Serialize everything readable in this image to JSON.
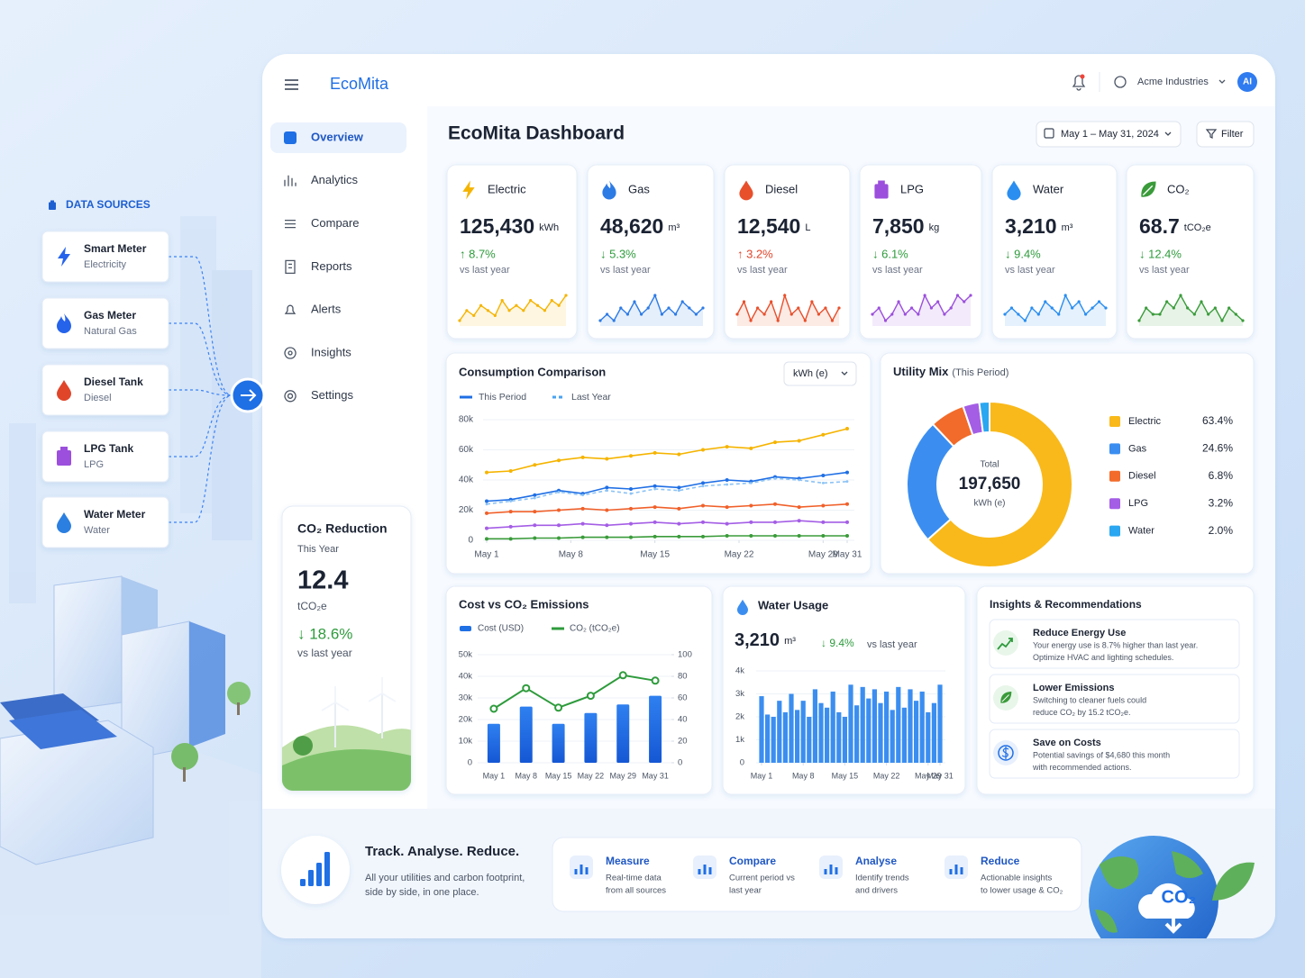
{
  "sources": {
    "title": "DATA SOURCES",
    "items": [
      {
        "name": "Smart Meter",
        "type": "Electricity"
      },
      {
        "name": "Gas Meter",
        "type": "Natural Gas"
      },
      {
        "name": "Diesel Tank",
        "type": "Diesel"
      },
      {
        "name": "LPG Tank",
        "type": "LPG"
      },
      {
        "name": "Water Meter",
        "type": "Water"
      }
    ]
  },
  "header": {
    "brand": "EcoMita",
    "company": "Acme Industries",
    "avatar": "AI"
  },
  "nav": {
    "items": [
      "Overview",
      "Analytics",
      "Compare",
      "Reports",
      "Alerts",
      "Insights",
      "Settings"
    ],
    "active": 0
  },
  "co2_card": {
    "title": "CO₂ Reduction",
    "subtitle": "This Year",
    "value": "12.4",
    "unit": "tCO₂e",
    "change": "↓ 18.6%",
    "change_color": "#2e9b3c",
    "note": "vs last year"
  },
  "dashboard": {
    "title": "EcoMita Dashboard",
    "date_range": "May 1 – May 31, 2024",
    "filter": "Filter"
  },
  "kpis": [
    {
      "name": "Electric",
      "value": "125,430",
      "unit": "kWh",
      "change": "↑ 8.7%",
      "change_color": "#2e9b3c",
      "note": "vs last year",
      "color": "#f5b400",
      "spark": [
        3,
        5,
        4,
        6,
        5,
        4,
        7,
        5,
        6,
        5,
        7,
        6,
        5,
        7,
        6,
        8
      ]
    },
    {
      "name": "Gas",
      "value": "48,620",
      "unit": "m³",
      "change": "↓ 5.3%",
      "change_color": "#2e9b3c",
      "note": "vs last year",
      "color": "#2d7be5",
      "spark": [
        4,
        5,
        4,
        6,
        5,
        7,
        5,
        6,
        8,
        5,
        6,
        5,
        7,
        6,
        5,
        6
      ]
    },
    {
      "name": "Diesel",
      "value": "12,540",
      "unit": "L",
      "change": "↑ 3.2%",
      "change_color": "#e0452a",
      "note": "vs last year",
      "color": "#e8502c",
      "spark": [
        5,
        7,
        4,
        6,
        5,
        7,
        4,
        8,
        5,
        6,
        4,
        7,
        5,
        6,
        4,
        6
      ]
    },
    {
      "name": "LPG",
      "value": "7,850",
      "unit": "kg",
      "change": "↓ 6.1%",
      "change_color": "#2e9b3c",
      "note": "vs last year",
      "color": "#9b4fdc",
      "spark": [
        4,
        5,
        3,
        4,
        6,
        4,
        5,
        4,
        7,
        5,
        6,
        4,
        5,
        7,
        6,
        7
      ]
    },
    {
      "name": "Water",
      "value": "3,210",
      "unit": "m³",
      "change": "↓ 9.4%",
      "change_color": "#2e9b3c",
      "note": "vs last year",
      "color": "#2a8ef0",
      "spark": [
        5,
        6,
        5,
        4,
        6,
        5,
        7,
        6,
        5,
        8,
        6,
        7,
        5,
        6,
        7,
        6
      ]
    },
    {
      "name": "CO₂",
      "value": "68.7",
      "unit": "tCO₂e",
      "change": "↓ 12.4%",
      "change_color": "#2e9b3c",
      "note": "vs last year",
      "color": "#3a9b3a",
      "spark": [
        4,
        6,
        5,
        5,
        7,
        6,
        8,
        6,
        5,
        7,
        5,
        6,
        4,
        6,
        5,
        4
      ]
    }
  ],
  "charts": {
    "consumption": {
      "type": "line",
      "title": "Consumption Comparison",
      "unit_selector": "kWh (e)",
      "legend": [
        {
          "label": "This Period",
          "color": "#1f6fe5",
          "dash": false
        },
        {
          "label": "Last Year",
          "color": "#4aa3f0",
          "dash": true
        }
      ],
      "x": [
        1,
        3,
        5,
        7,
        9,
        11,
        13,
        15,
        17,
        19,
        21,
        23,
        25,
        27,
        29,
        31
      ],
      "xlim": [
        1,
        31
      ],
      "xticks": [
        {
          "value": 1,
          "label": "May 1"
        },
        {
          "value": 8,
          "label": "May 8"
        },
        {
          "value": 15,
          "label": "May 15"
        },
        {
          "value": 22,
          "label": "May 22"
        },
        {
          "value": 29,
          "label": "May 29"
        },
        {
          "value": 31,
          "label": "May 31"
        }
      ],
      "ylim": [
        0,
        80000
      ],
      "yticks": [
        0,
        {
          "value": 20000,
          "label": "20k"
        },
        {
          "value": 40000,
          "label": "40k"
        },
        {
          "value": 60000,
          "label": "60k"
        },
        {
          "value": 80000,
          "label": "80k"
        }
      ],
      "series": [
        {
          "color": "#f5b400",
          "dash": false,
          "values": [
            45000,
            46000,
            50000,
            53000,
            55000,
            54000,
            56000,
            58000,
            57000,
            60000,
            62000,
            61000,
            65000,
            66000,
            70000,
            74000
          ]
        },
        {
          "color": "#1f6fe5",
          "dash": false,
          "values": [
            26000,
            27000,
            30000,
            33000,
            31000,
            35000,
            34000,
            36000,
            35000,
            38000,
            40000,
            39000,
            42000,
            41000,
            43000,
            45000
          ]
        },
        {
          "color": "#8cc3f5",
          "dash": true,
          "values": [
            24000,
            26000,
            28000,
            32000,
            30000,
            33000,
            31000,
            34000,
            33000,
            36000,
            37000,
            38000,
            41000,
            40000,
            38000,
            39000
          ]
        },
        {
          "color": "#f0602a",
          "dash": false,
          "values": [
            18000,
            19000,
            19000,
            20000,
            21000,
            20000,
            21000,
            22000,
            21000,
            23000,
            22000,
            23000,
            24000,
            22000,
            23000,
            24000
          ]
        },
        {
          "color": "#a45ee5",
          "dash": false,
          "values": [
            8000,
            9000,
            10000,
            10000,
            11000,
            10000,
            11000,
            12000,
            11000,
            12000,
            11000,
            12000,
            12000,
            13000,
            12000,
            12000
          ]
        },
        {
          "color": "#3a9b3a",
          "dash": false,
          "values": [
            1000,
            1000,
            1500,
            1500,
            2000,
            2000,
            2000,
            2500,
            2500,
            2500,
            3000,
            3000,
            3000,
            3000,
            3000,
            3000
          ]
        }
      ]
    },
    "utility_mix": {
      "type": "donut",
      "title": "Utility Mix",
      "subtitle": "(This Period)",
      "categories": [
        "Electric",
        "Gas",
        "Diesel",
        "LPG",
        "Water"
      ],
      "values": [
        63.4,
        24.6,
        6.8,
        3.2,
        2.0
      ],
      "value_labels": [
        "63.4%",
        "24.6%",
        "6.8%",
        "3.2%",
        "2.0%"
      ],
      "colors": [
        "#f9b91a",
        "#3b8ef0",
        "#f26b2a",
        "#a45ee5",
        "#2aa7f0"
      ],
      "center": {
        "label": "Total",
        "value": "197,650",
        "unit": "kWh (e)"
      }
    },
    "cost_co2": {
      "type": "combo",
      "title": "Cost vs CO₂ Emissions",
      "categories": [
        "May 1",
        "May 8",
        "May 15",
        "May 22",
        "May 29",
        "May 31"
      ],
      "series": [
        {
          "name": "Cost (USD)",
          "color": "#1f6fe5",
          "values": [
            18000,
            26000,
            18000,
            23000,
            27000,
            31000
          ]
        },
        {
          "name": "CO₂ (tCO₂e)",
          "color": "#2e9b3c",
          "axis": "y2",
          "values": [
            50,
            69,
            51,
            62,
            81,
            76
          ]
        }
      ],
      "ylim": [
        0,
        50000
      ],
      "yticks": [
        0,
        {
          "value": 10000,
          "label": "10k"
        },
        {
          "value": 20000,
          "label": "20k"
        },
        {
          "value": 30000,
          "label": "30k"
        },
        {
          "value": 40000,
          "label": "40k"
        },
        {
          "value": 50000,
          "label": "50k"
        }
      ],
      "y2lim": [
        0,
        100
      ],
      "y2ticks": [
        0,
        20,
        40,
        60,
        80,
        100
      ]
    },
    "water": {
      "type": "bar",
      "title": "Water Usage",
      "value": "3,210",
      "unit": "m³",
      "change": "↓ 9.4%",
      "change_color": "#2e9b3c",
      "note": "vs last year",
      "color": "#3b8ef0",
      "x": [
        1,
        2,
        3,
        4,
        5,
        6,
        7,
        8,
        9,
        10,
        11,
        12,
        13,
        14,
        15,
        16,
        17,
        18,
        19,
        20,
        21,
        22,
        23,
        24,
        25,
        26,
        27,
        28,
        29,
        30,
        31
      ],
      "values": [
        2900,
        2100,
        2000,
        2700,
        2200,
        3000,
        2300,
        2700,
        2000,
        3200,
        2600,
        2400,
        3100,
        2200,
        2000,
        3400,
        2500,
        3300,
        2800,
        3200,
        2600,
        3100,
        2300,
        3300,
        2400,
        3200,
        2700,
        3100,
        2200,
        2600,
        3400
      ],
      "xlim": [
        1,
        31
      ],
      "xticks": [
        {
          "value": 1,
          "label": "May 1"
        },
        {
          "value": 8,
          "label": "May 8"
        },
        {
          "value": 15,
          "label": "May 15"
        },
        {
          "value": 22,
          "label": "May 22"
        },
        {
          "value": 29,
          "label": "May 29"
        },
        {
          "value": 31,
          "label": "May 31"
        }
      ],
      "ylim": [
        0,
        4000
      ],
      "yticks": [
        0,
        {
          "value": 1000,
          "label": "1k"
        },
        {
          "value": 2000,
          "label": "2k"
        },
        {
          "value": 3000,
          "label": "3k"
        },
        {
          "value": 4000,
          "label": "4k"
        }
      ]
    }
  },
  "insights": {
    "title": "Insights & Recommendations",
    "items": [
      {
        "title": "Reduce Energy Use",
        "text": [
          "Your energy use is 8.7% higher than last year.",
          "Optimize HVAC and lighting schedules."
        ]
      },
      {
        "title": "Lower Emissions",
        "text": [
          "Switching to cleaner fuels could",
          "reduce CO₂ by 15.2 tCO₂e."
        ]
      },
      {
        "title": "Save on Costs",
        "text": [
          "Potential savings of $4,680 this month",
          "with recommended actions."
        ]
      }
    ]
  },
  "footer": {
    "title": "Track. Analyse. Reduce.",
    "text": [
      "All your utilities and carbon footprint,",
      "side by side, in one place."
    ],
    "features": [
      {
        "title": "Measure",
        "text": [
          "Real-time data",
          "from all sources"
        ]
      },
      {
        "title": "Compare",
        "text": [
          "Current period vs",
          "last year"
        ]
      },
      {
        "title": "Analyse",
        "text": [
          "Identify trends",
          "and drivers"
        ]
      },
      {
        "title": "Reduce",
        "text": [
          "Actionable insights",
          "to lower usage & CO₂"
        ]
      }
    ],
    "badge": "CO₂"
  }
}
